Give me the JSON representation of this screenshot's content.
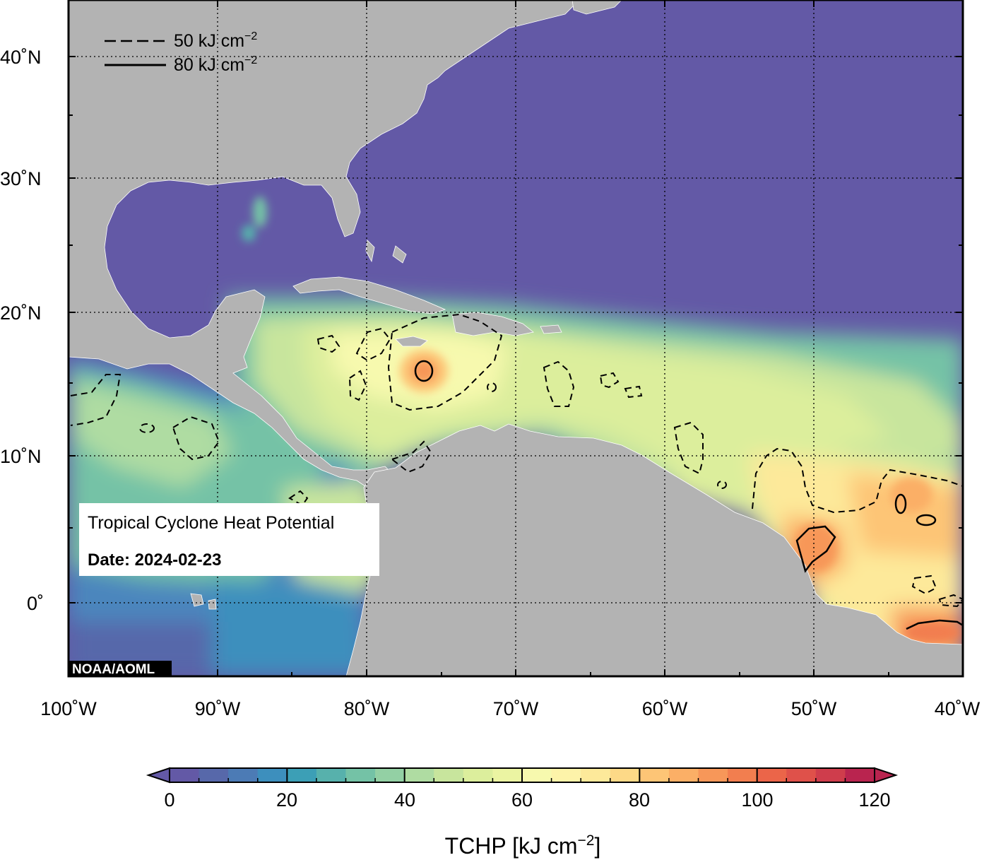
{
  "map": {
    "title": "Tropical Cyclone Heat Potential",
    "date": "Date: 2024-02-23",
    "credit": "NOAA/AOML",
    "lon_labels": [
      "100˚W",
      "90˚W",
      "80˚W",
      "70˚W",
      "60˚W",
      "50˚W",
      "40˚W"
    ],
    "lat_labels": [
      "40˚N",
      "30˚N",
      "20˚N",
      "10˚N",
      "0˚"
    ],
    "extent": {
      "lon_min": -100,
      "lon_max": -40,
      "lat_min": -5,
      "lat_max": 45
    },
    "colors": {
      "land": "#b3b3b3",
      "ocean_low": "#6359a6",
      "warm": "#f28c55",
      "hot": "#ef6a45"
    }
  },
  "legend": {
    "items": [
      {
        "label": "50 kJ cm",
        "sup": "−2",
        "style": "dashed"
      },
      {
        "label": "80 kJ cm",
        "sup": "−2",
        "style": "solid"
      }
    ]
  },
  "colorbar": {
    "label_main": "TCHP [kJ cm",
    "label_sup": "−2",
    "label_end": "]",
    "ticks": [
      "0",
      "20",
      "40",
      "60",
      "80",
      "100",
      "120"
    ],
    "min": 0,
    "max": 120,
    "step": 5,
    "colors": [
      "#6359a6",
      "#5768aa",
      "#4c7bb5",
      "#3d8fbd",
      "#3c9fb6",
      "#57b1ac",
      "#74c2a6",
      "#93d0a4",
      "#afdca2",
      "#c8e59d",
      "#dcee9c",
      "#ebf4a2",
      "#f7f9ae",
      "#fdf3a9",
      "#fde99a",
      "#fdd987",
      "#fdc576",
      "#fbaf66",
      "#f79759",
      "#f27e4f",
      "#eb6549",
      "#df514a",
      "#cf3d4c",
      "#b9244f"
    ]
  }
}
